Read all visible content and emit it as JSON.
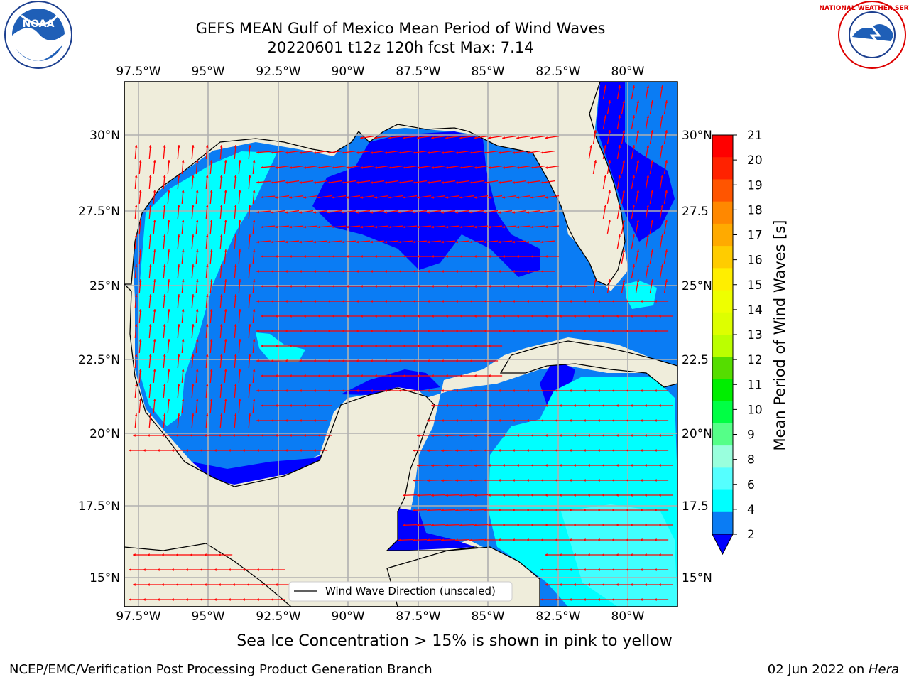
{
  "header": {
    "title_line1": "GEFS MEAN Gulf of Mexico Mean Period of Wind Waves",
    "title_line2": "20220601 t12z 120h fcst   Max: 7.14"
  },
  "logos": {
    "left": "NOAA",
    "left_ring": "NATIONAL OCEANIC AND ATMOSPHERIC ADMINISTRATION · U.S. DEPARTMENT OF COMMERCE",
    "right_ring": "NATIONAL WEATHER SERVICE"
  },
  "map": {
    "lon_labels_top": [
      "97.5°W",
      "95°W",
      "92.5°W",
      "90°W",
      "87.5°W",
      "85°W",
      "82.5°W",
      "80°W"
    ],
    "lon_labels_bottom": [
      "97.5°W",
      "95°W",
      "92.5°W",
      "90°W",
      "87.5°W",
      "85°W",
      "82.5°W",
      "80°W"
    ],
    "lat_labels_left": [
      "30°N",
      "27.5°N",
      "25°N",
      "22.5°N",
      "20°N",
      "17.5°N",
      "15°N"
    ],
    "lat_labels_right": [
      "30°N",
      "27.5",
      "25°N",
      "22.5",
      "20°N",
      "17.5",
      "15°N"
    ],
    "legend": "Wind Wave Direction (unscaled)",
    "colors": {
      "land": "#efeddb",
      "level_0_2": "#0000ff",
      "level_2_4": "#0a7cf4",
      "level_4_6": "#00ffff",
      "level_6_8": "#40ffff",
      "arrow": "#ff0000"
    }
  },
  "colorbar": {
    "label": "Mean Period of Wind Waves [s]",
    "ticks": [
      "21",
      "20",
      "19",
      "18",
      "17",
      "16",
      "15",
      "14",
      "13",
      "12",
      "11",
      "10",
      "9",
      "8",
      "6",
      "4",
      "2"
    ],
    "colors": [
      "#ff0000",
      "#ff2200",
      "#ff5500",
      "#ff8800",
      "#ffaa00",
      "#ffcc00",
      "#ffee00",
      "#eeff00",
      "#ddff00",
      "#bbff00",
      "#55dd00",
      "#00ee00",
      "#00ff44",
      "#55ff88",
      "#99ffdd",
      "#55ffff",
      "#00ffff",
      "#0a7cf4"
    ],
    "extend_color": "#0000ff"
  },
  "footer": {
    "note": "Sea Ice Concentration > 15% is shown in pink to yellow",
    "left": "NCEP/EMC/Verification Post Processing Product Generation Branch",
    "date": "02 Jun 2022 on ",
    "host": "Hera"
  }
}
